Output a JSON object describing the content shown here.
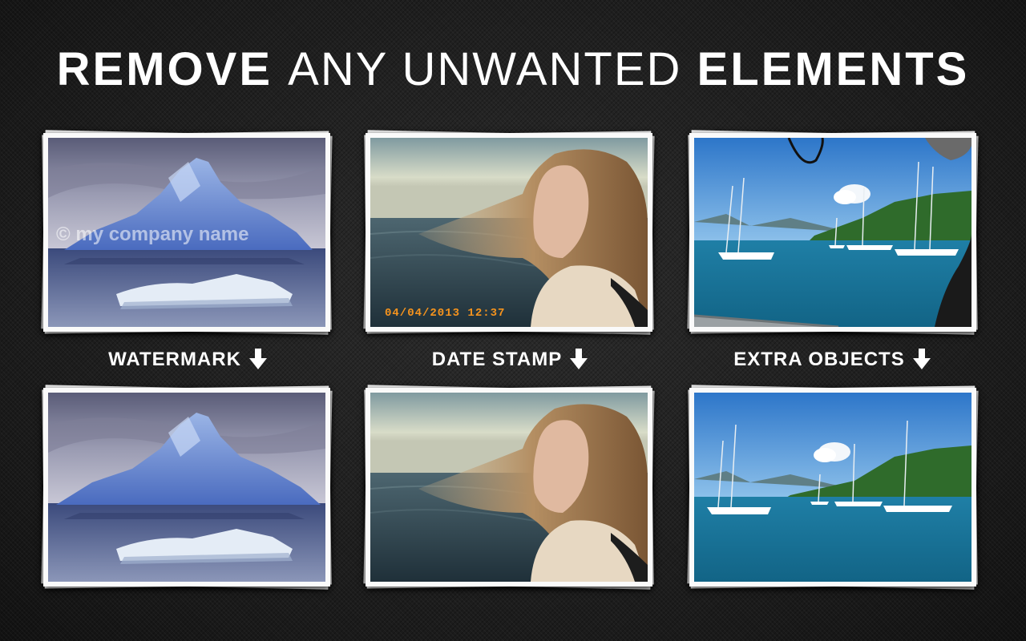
{
  "headline": {
    "word1": "REMOVE",
    "word2": "ANY UNWANTED",
    "word3": "ELEMENTS"
  },
  "labels": {
    "watermark": "WATERMARK",
    "date_stamp": "DATE STAMP",
    "extra_objects": "EXTRA OBJECTS"
  },
  "overlays": {
    "watermark_text": "© my company name",
    "date_text": "04/04/2013  12:37"
  },
  "icons": {
    "label_arrow": "arrow-down-icon"
  },
  "colors": {
    "date_stamp": "#f7941d",
    "headline": "#ffffff"
  }
}
